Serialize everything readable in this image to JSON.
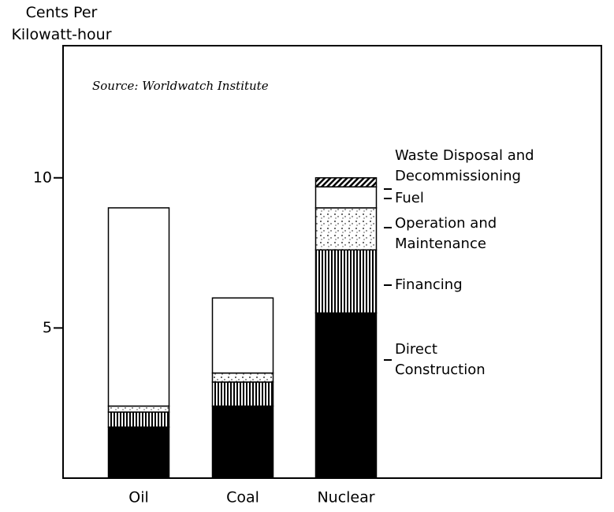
{
  "chart_data": {
    "type": "stacked-bar",
    "title": "Cents Per Kilowatt-hour",
    "annotation": "Source: Worldwatch Institute",
    "categories": [
      "Oil",
      "Coal",
      "Nuclear"
    ],
    "series": [
      {
        "name": "Direct Construction",
        "color": "#000000",
        "fill_pattern": "solid",
        "values": [
          1.7,
          2.4,
          5.5
        ]
      },
      {
        "name": "Financing",
        "color": "#000000",
        "fill_pattern": "vertical-stripes",
        "values": [
          0.5,
          0.8,
          2.1
        ]
      },
      {
        "name": "Operation and Maintenance",
        "color": "#000000",
        "fill_pattern": "dots",
        "values": [
          0.2,
          0.3,
          1.4
        ]
      },
      {
        "name": "Fuel",
        "color": "#ffffff",
        "fill_pattern": "solid",
        "values": [
          6.6,
          2.5,
          0.7
        ]
      },
      {
        "name": "Waste Disposal and Decommissioning",
        "color": "#000000",
        "fill_pattern": "diagonal-hatch",
        "values": [
          0,
          0,
          0.3
        ]
      }
    ],
    "ylim": [
      0,
      14.4
    ],
    "yticks": [
      5,
      10
    ]
  }
}
